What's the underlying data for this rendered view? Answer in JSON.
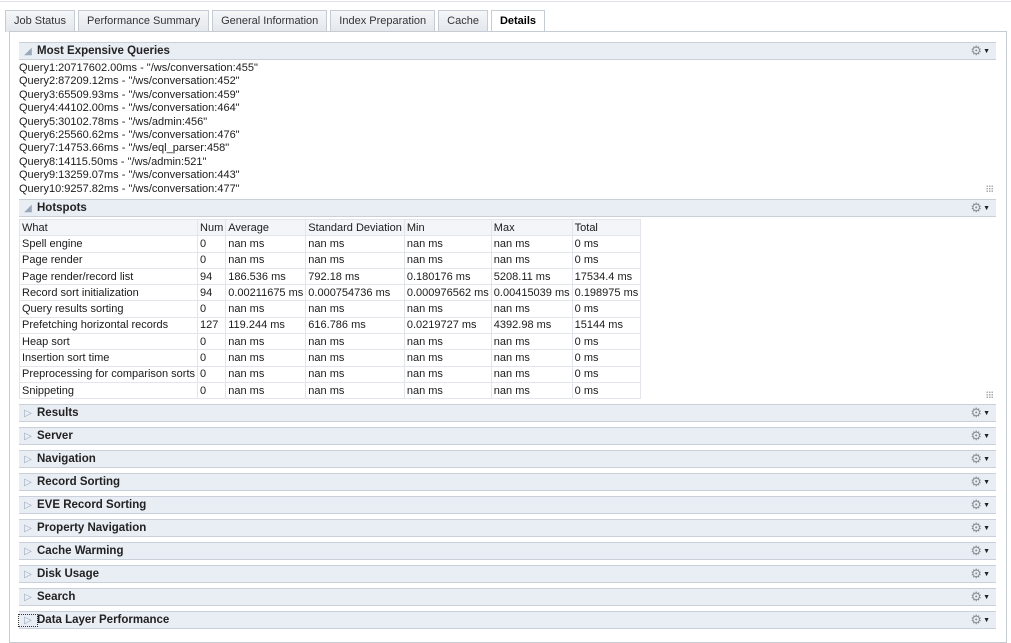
{
  "tabs": [
    {
      "label": "Job Status"
    },
    {
      "label": "Performance Summary"
    },
    {
      "label": "General Information"
    },
    {
      "label": "Index Preparation"
    },
    {
      "label": "Cache"
    },
    {
      "label": "Details",
      "active": true
    }
  ],
  "icons": {
    "expanded": "triangle-expanded-icon",
    "collapsed": "triangle-collapsed-icon",
    "menu": "gear-dropdown-icon"
  },
  "expensive_queries": {
    "title": "Most Expensive Queries",
    "lines": [
      "Query1:20717602.00ms - \"/ws/conversation:455\"",
      "Query2:87209.12ms - \"/ws/conversation:452\"",
      "Query3:65509.93ms - \"/ws/conversation:459\"",
      "Query4:44102.00ms - \"/ws/conversation:464\"",
      "Query5:30102.78ms - \"/ws/admin:456\"",
      "Query6:25560.62ms - \"/ws/conversation:476\"",
      "Query7:14753.66ms - \"/ws/eql_parser:458\"",
      "Query8:14115.50ms - \"/ws/admin:521\"",
      "Query9:13259.07ms - \"/ws/conversation:443\"",
      "Query10:9257.82ms - \"/ws/conversation:477\""
    ]
  },
  "hotspots": {
    "title": "Hotspots",
    "columns": [
      "What",
      "Num",
      "Average",
      "Standard Deviation",
      "Min",
      "Max",
      "Total"
    ],
    "rows": [
      [
        "Spell engine",
        "0",
        "nan ms",
        "nan ms",
        "nan ms",
        "nan ms",
        "0 ms"
      ],
      [
        "Page render",
        "0",
        "nan ms",
        "nan ms",
        "nan ms",
        "nan ms",
        "0 ms"
      ],
      [
        "Page render/record list",
        "94",
        "186.536 ms",
        "792.18 ms",
        "0.180176 ms",
        "5208.11 ms",
        "17534.4 ms"
      ],
      [
        "Record sort initialization",
        "94",
        "0.00211675 ms",
        "0.000754736 ms",
        "0.000976562 ms",
        "0.00415039 ms",
        "0.198975 ms"
      ],
      [
        "Query results sorting",
        "0",
        "nan ms",
        "nan ms",
        "nan ms",
        "nan ms",
        "0 ms"
      ],
      [
        "Prefetching horizontal records",
        "127",
        "119.244 ms",
        "616.786 ms",
        "0.0219727 ms",
        "4392.98 ms",
        "15144 ms"
      ],
      [
        "Heap sort",
        "0",
        "nan ms",
        "nan ms",
        "nan ms",
        "nan ms",
        "0 ms"
      ],
      [
        "Insertion sort time",
        "0",
        "nan ms",
        "nan ms",
        "nan ms",
        "nan ms",
        "0 ms"
      ],
      [
        "Preprocessing for comparison sorts",
        "0",
        "nan ms",
        "nan ms",
        "nan ms",
        "nan ms",
        "0 ms"
      ],
      [
        "Snippeting",
        "0",
        "nan ms",
        "nan ms",
        "nan ms",
        "nan ms",
        "0 ms"
      ]
    ]
  },
  "collapsed_sections": [
    {
      "title": "Results"
    },
    {
      "title": "Server"
    },
    {
      "title": "Navigation"
    },
    {
      "title": "Record Sorting"
    },
    {
      "title": "EVE Record Sorting"
    },
    {
      "title": "Property Navigation"
    },
    {
      "title": "Cache Warming"
    },
    {
      "title": "Disk Usage"
    },
    {
      "title": "Search"
    },
    {
      "title": "Data Layer Performance"
    }
  ]
}
